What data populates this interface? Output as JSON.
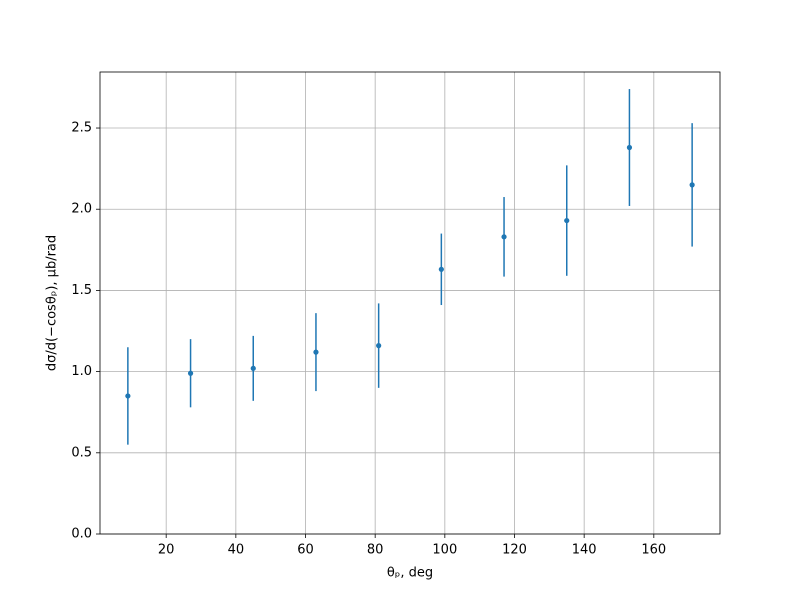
{
  "chart_data": {
    "type": "scatter",
    "xlabel": "θₚ, deg",
    "ylabel": "dσ/d(−cosθₚ), μb/rad",
    "x": [
      9,
      27,
      45,
      63,
      81,
      99,
      117,
      135,
      153,
      171
    ],
    "series": [
      {
        "color": "#1f77b4",
        "values": [
          0.85,
          0.99,
          1.02,
          1.12,
          1.16,
          1.63,
          1.83,
          1.93,
          2.38,
          2.15
        ],
        "errors": [
          0.3,
          0.21,
          0.2,
          0.24,
          0.26,
          0.22,
          0.245,
          0.34,
          0.36,
          0.38
        ]
      }
    ],
    "xlim": [
      1,
      179
    ],
    "ylim": [
      0,
      2.845
    ],
    "xticks": [
      20,
      40,
      60,
      80,
      100,
      120,
      140,
      160
    ],
    "yticks": [
      {
        "value": 0,
        "label": "0.0"
      },
      0.5,
      {
        "value": 1,
        "label": "1.0"
      },
      1.5,
      {
        "value": 2,
        "label": "2.0"
      },
      2.5
    ],
    "grid": true
  }
}
